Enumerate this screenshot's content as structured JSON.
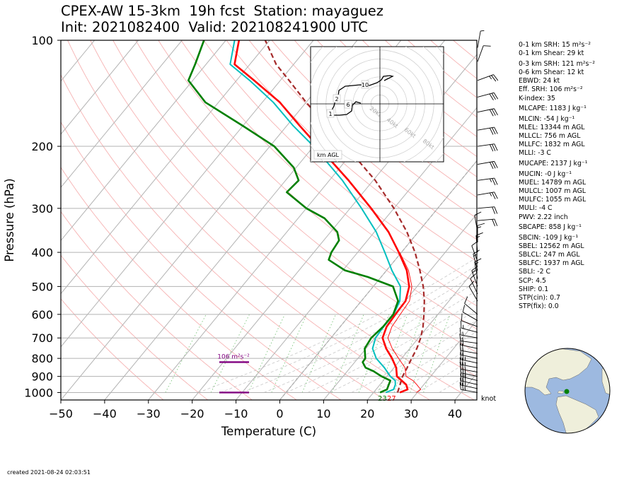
{
  "title": {
    "line1": "CPEX-AW 15-3km  19h fcst  Station: mayaguez",
    "line2": "Init: 2021082400  Valid: 202108241900 UTC"
  },
  "chart_data": {
    "type": "line",
    "subtype": "skew-T log-p sounding",
    "xlabel": "Temperature (C)",
    "ylabel": "Pressure (hPa)",
    "xlim": [
      -50,
      45
    ],
    "ylim": [
      1050,
      100
    ],
    "y_scale": "log",
    "x_ticks": [
      -50,
      -40,
      -30,
      -20,
      -10,
      0,
      10,
      20,
      30,
      40
    ],
    "y_ticks": [
      100,
      200,
      300,
      400,
      500,
      600,
      700,
      800,
      900,
      1000
    ],
    "grid": true,
    "series": [
      {
        "key": "temperature",
        "color": "#ff0000",
        "points": [
          [
            1000,
            26.0
          ],
          [
            980,
            27.2
          ],
          [
            950,
            26.0
          ],
          [
            925,
            24.2
          ],
          [
            900,
            22.3
          ],
          [
            850,
            20.5
          ],
          [
            800,
            17.8
          ],
          [
            750,
            14.6
          ],
          [
            700,
            11.8
          ],
          [
            650,
            10.6
          ],
          [
            600,
            10.3
          ],
          [
            550,
            10.1
          ],
          [
            500,
            8.2
          ],
          [
            450,
            4.6
          ],
          [
            400,
            -0.6
          ],
          [
            350,
            -6.8
          ],
          [
            300,
            -15.2
          ],
          [
            250,
            -25.6
          ],
          [
            200,
            -39.0
          ],
          [
            175,
            -47.0
          ],
          [
            150,
            -56.0
          ],
          [
            130,
            -66.0
          ],
          [
            117,
            -73.5
          ],
          [
            100,
            -77.0
          ]
        ]
      },
      {
        "key": "virtual-temperature",
        "color": "#ff0000",
        "thin": true,
        "points": [
          [
            1000,
            29.8
          ],
          [
            980,
            30.2
          ],
          [
            950,
            28.4
          ],
          [
            925,
            26.8
          ],
          [
            900,
            24.4
          ],
          [
            850,
            22.5
          ],
          [
            800,
            19.3
          ],
          [
            750,
            16.0
          ],
          [
            700,
            13.0
          ],
          [
            650,
            11.8
          ],
          [
            600,
            11.4
          ],
          [
            550,
            11.0
          ],
          [
            500,
            8.8
          ],
          [
            450,
            5.0
          ],
          [
            400,
            -0.4
          ]
        ]
      },
      {
        "key": "wetbulb",
        "color": "#00bfbf",
        "points": [
          [
            1000,
            22.8
          ],
          [
            980,
            24.0
          ],
          [
            950,
            23.5
          ],
          [
            925,
            22.7
          ],
          [
            900,
            20.8
          ],
          [
            850,
            17.8
          ],
          [
            800,
            14.2
          ],
          [
            750,
            11.5
          ],
          [
            700,
            10.2
          ],
          [
            650,
            9.9
          ],
          [
            600,
            9.9
          ],
          [
            550,
            8.8
          ],
          [
            500,
            6.2
          ],
          [
            450,
            1.2
          ],
          [
            400,
            -3.8
          ],
          [
            350,
            -9.6
          ],
          [
            300,
            -17.4
          ],
          [
            250,
            -27.0
          ],
          [
            200,
            -40.0
          ],
          [
            175,
            -48.5
          ],
          [
            150,
            -57.5
          ],
          [
            130,
            -67.0
          ],
          [
            117,
            -74.5
          ],
          [
            100,
            -78.0
          ]
        ]
      },
      {
        "key": "dewpoint",
        "color": "#008000",
        "points": [
          [
            1000,
            21.5
          ],
          [
            980,
            22.5
          ],
          [
            950,
            22.0
          ],
          [
            925,
            21.6
          ],
          [
            900,
            18.8
          ],
          [
            870,
            16.0
          ],
          [
            850,
            13.5
          ],
          [
            820,
            11.8
          ],
          [
            800,
            11.7
          ],
          [
            750,
            9.7
          ],
          [
            700,
            9.2
          ],
          [
            650,
            9.8
          ],
          [
            600,
            9.8
          ],
          [
            550,
            8.4
          ],
          [
            500,
            4.5
          ],
          [
            470,
            -3.0
          ],
          [
            450,
            -9.5
          ],
          [
            420,
            -15.2
          ],
          [
            400,
            -16.0
          ],
          [
            370,
            -16.5
          ],
          [
            350,
            -18.5
          ],
          [
            320,
            -24.0
          ],
          [
            300,
            -30.0
          ],
          [
            270,
            -37.5
          ],
          [
            250,
            -37.0
          ],
          [
            230,
            -40.5
          ],
          [
            200,
            -49.0
          ],
          [
            175,
            -60.0
          ],
          [
            150,
            -73.0
          ],
          [
            130,
            -81.0
          ],
          [
            117,
            -82.5
          ],
          [
            100,
            -85.0
          ]
        ]
      },
      {
        "key": "parcel-trace",
        "color": "#a52a2a",
        "dashed": true,
        "points": [
          [
            1000,
            25.5
          ],
          [
            900,
            23.6
          ],
          [
            850,
            23.0
          ],
          [
            800,
            22.3
          ],
          [
            750,
            21.6
          ],
          [
            700,
            20.5
          ],
          [
            650,
            18.9
          ],
          [
            600,
            16.8
          ],
          [
            550,
            14.4
          ],
          [
            500,
            11.4
          ],
          [
            450,
            7.6
          ],
          [
            400,
            3.1
          ],
          [
            350,
            -2.6
          ],
          [
            300,
            -10.0
          ],
          [
            250,
            -19.5
          ],
          [
            200,
            -32.6
          ],
          [
            175,
            -40.8
          ],
          [
            150,
            -50.0
          ],
          [
            130,
            -58.0
          ],
          [
            117,
            -64.0
          ],
          [
            100,
            -71.0
          ]
        ]
      }
    ],
    "annotations": {
      "effective_layer_label": "106 m²s⁻²",
      "surface_labels": [
        {
          "text": "23",
          "color": "#008000"
        },
        {
          "text": "27",
          "color": "#ff0000"
        }
      ],
      "knot_label": "knot"
    },
    "hodograph": {
      "axis_label": "km AGL",
      "ring_labels": [
        "20kt",
        "40kt",
        "60kt",
        "80kt"
      ],
      "height_labels": [
        "1",
        "2",
        "6",
        "10"
      ],
      "trace_color": "#000000"
    },
    "wind_barbs": [
      {
        "p": 1000,
        "spd": 25,
        "dir": 280
      },
      {
        "p": 975,
        "spd": 27,
        "dir": 282
      },
      {
        "p": 950,
        "spd": 28,
        "dir": 283
      },
      {
        "p": 925,
        "spd": 28,
        "dir": 284
      },
      {
        "p": 900,
        "spd": 26,
        "dir": 282
      },
      {
        "p": 875,
        "spd": 25,
        "dir": 280
      },
      {
        "p": 850,
        "spd": 25,
        "dir": 280
      },
      {
        "p": 825,
        "spd": 23,
        "dir": 282
      },
      {
        "p": 800,
        "spd": 22,
        "dir": 282
      },
      {
        "p": 775,
        "spd": 20,
        "dir": 280
      },
      {
        "p": 750,
        "spd": 18,
        "dir": 282
      },
      {
        "p": 725,
        "spd": 17,
        "dir": 278
      },
      {
        "p": 700,
        "spd": 15,
        "dir": 280
      },
      {
        "p": 675,
        "spd": 13,
        "dir": 285
      },
      {
        "p": 650,
        "spd": 12,
        "dir": 290
      },
      {
        "p": 625,
        "spd": 10,
        "dir": 300
      },
      {
        "p": 600,
        "spd": 8,
        "dir": 310
      },
      {
        "p": 550,
        "spd": 10,
        "dir": 330
      },
      {
        "p": 525,
        "spd": 12,
        "dir": 335
      },
      {
        "p": 500,
        "spd": 13,
        "dir": 340
      },
      {
        "p": 475,
        "spd": 15,
        "dir": 350
      },
      {
        "p": 450,
        "spd": 13,
        "dir": 345
      },
      {
        "p": 425,
        "spd": 12,
        "dir": 340
      },
      {
        "p": 400,
        "spd": 15,
        "dir": 355
      },
      {
        "p": 375,
        "spd": 13,
        "dir": 0
      },
      {
        "p": 350,
        "spd": 10,
        "dir": 350
      },
      {
        "p": 325,
        "spd": 20,
        "dir": 85
      },
      {
        "p": 300,
        "spd": 22,
        "dir": 85
      },
      {
        "p": 275,
        "spd": 25,
        "dir": 80
      },
      {
        "p": 250,
        "spd": 25,
        "dir": 82
      },
      {
        "p": 225,
        "spd": 28,
        "dir": 80
      },
      {
        "p": 200,
        "spd": 30,
        "dir": 82
      },
      {
        "p": 180,
        "spd": 30,
        "dir": 80
      },
      {
        "p": 160,
        "spd": 32,
        "dir": 78
      },
      {
        "p": 145,
        "spd": 30,
        "dir": 75
      },
      {
        "p": 130,
        "spd": 25,
        "dir": 70
      },
      {
        "p": 115,
        "spd": 10,
        "dir": 20
      },
      {
        "p": 105,
        "spd": 5,
        "dir": 10
      }
    ],
    "globe": {
      "marker_color": "#008000",
      "ocean_color": "#9db9e0",
      "land_color": "#efefdb"
    }
  },
  "stats": [
    "0-1 km SRH: 15 m²s⁻²",
    "0-1 km Shear: 29 kt",
    "0-3 km SRH: 121 m²s⁻²",
    "0-6 km Shear: 12 kt",
    "EBWD: 24 kt",
    "Eff. SRH: 106 m²s⁻²",
    "K-index: 35",
    "MLCAPE: 1183 J kg⁻¹",
    "MLCIN: -54 J kg⁻¹",
    "MLEL: 13344 m AGL",
    "MLLCL: 756 m AGL",
    "MLLFC: 1832 m AGL",
    "MLLI: -3 C",
    "MUCAPE: 2137 J kg⁻¹",
    "MUCIN: -0 J kg⁻¹",
    "MUEL: 14789 m AGL",
    "MULCL: 1007 m AGL",
    "MULFC: 1055 m AGL",
    "MULI: -4 C",
    "PWV: 2.22 inch",
    "SBCAPE: 858 J kg⁻¹",
    "SBCIN: -109 J kg⁻¹",
    "SBEL: 12562 m AGL",
    "SBLCL: 247 m AGL",
    "SBLFC: 1937 m AGL",
    "SBLI: -2 C",
    "SCP: 4.5",
    "SHIP: 0.1",
    "STP(cin): 0.7",
    "STP(fix): 0.0"
  ],
  "footer": {
    "created": "created 2021-08-24 02:03:51"
  }
}
